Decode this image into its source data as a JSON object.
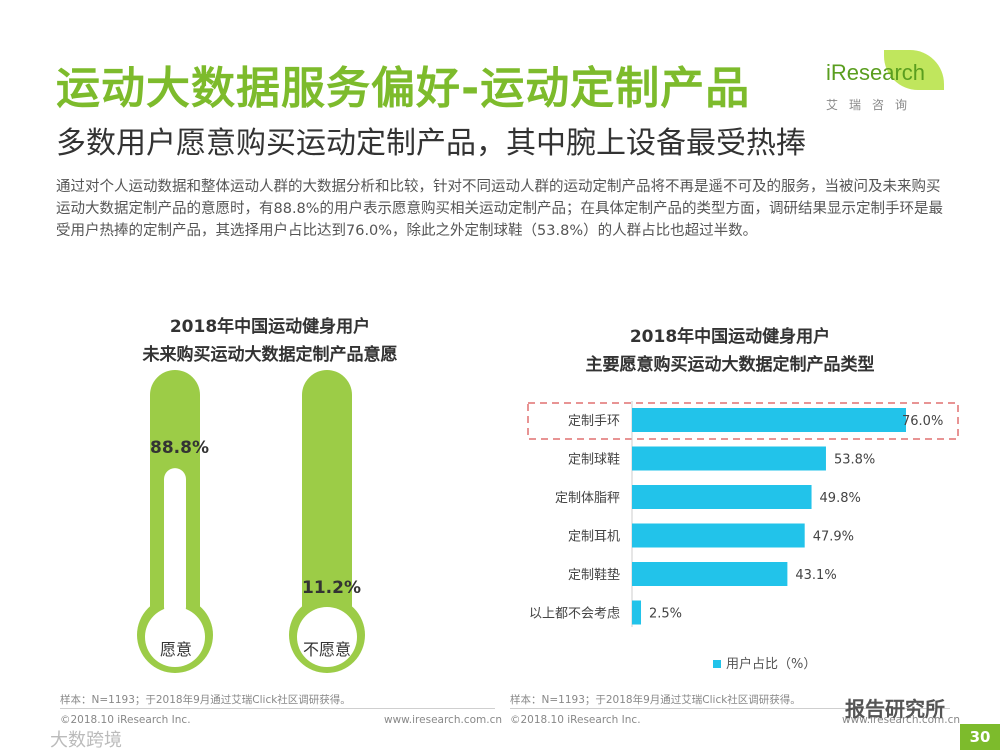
{
  "header": {
    "title": "运动大数据服务偏好-运动定制产品",
    "subtitle": "多数用户愿意购买运动定制产品，其中腕上设备最受热捧",
    "body": "通过对个人运动数据和整体运动人群的大数据分析和比较，针对不同运动人群的运动定制产品将不再是遥不可及的服务，当被问及未来购买运动大数据定制产品的意愿时，有88.8%的用户表示愿意购买相关运动定制产品；在具体定制产品的类型方面，调研结果显示定制手环是最受用户热捧的定制产品，其选择用户占比达到76.0%，除此之外定制球鞋（53.8%）的人群占比也超过半数。"
  },
  "logo": {
    "text": "iResearch",
    "cn": "艾瑞咨询"
  },
  "colors": {
    "green": "#7dbb2c",
    "green_light": "#9ccc47",
    "bar": "#22c3ea",
    "highlight": "#e07070"
  },
  "chart_data": [
    {
      "type": "thermometer",
      "title_line1": "2018年中国运动健身用户",
      "title_line2": "未来购买运动大数据定制产品意愿",
      "items": [
        {
          "label": "愿意",
          "value": 88.8,
          "display": "88.8%"
        },
        {
          "label": "不愿意",
          "value": 11.2,
          "display": "11.2%"
        }
      ]
    },
    {
      "type": "bar",
      "orientation": "horizontal",
      "title_line1": "2018年中国运动健身用户",
      "title_line2": "主要愿意购买运动大数据定制产品类型",
      "categories": [
        "定制手环",
        "定制球鞋",
        "定制体脂秤",
        "定制耳机",
        "定制鞋垫",
        "以上都不会考虑"
      ],
      "values": [
        76.0,
        53.8,
        49.8,
        47.9,
        43.1,
        2.5
      ],
      "value_labels": [
        "76.0%",
        "53.8%",
        "49.8%",
        "47.9%",
        "43.1%",
        "2.5%"
      ],
      "legend": "用户占比（%）",
      "legend_position": "bottom",
      "highlight_category": "定制手环",
      "xlim": [
        0,
        76
      ]
    }
  ],
  "footer": {
    "sample_left": "样本：N=1193；于2018年9月通过艾瑞Click社区调研获得。",
    "sample_right": "样本：N=1193；于2018年9月通过艾瑞Click社区调研获得。",
    "copyright_left": "©2018.10 iResearch Inc.",
    "site_left": "www.iresearch.com.cn",
    "copyright_right": "©2018.10 iResearch Inc.",
    "site_right": "www.iresearch.com.cn",
    "page_number": "30",
    "watermark_right": "报告研究所",
    "watermark_left": "大数跨境"
  }
}
